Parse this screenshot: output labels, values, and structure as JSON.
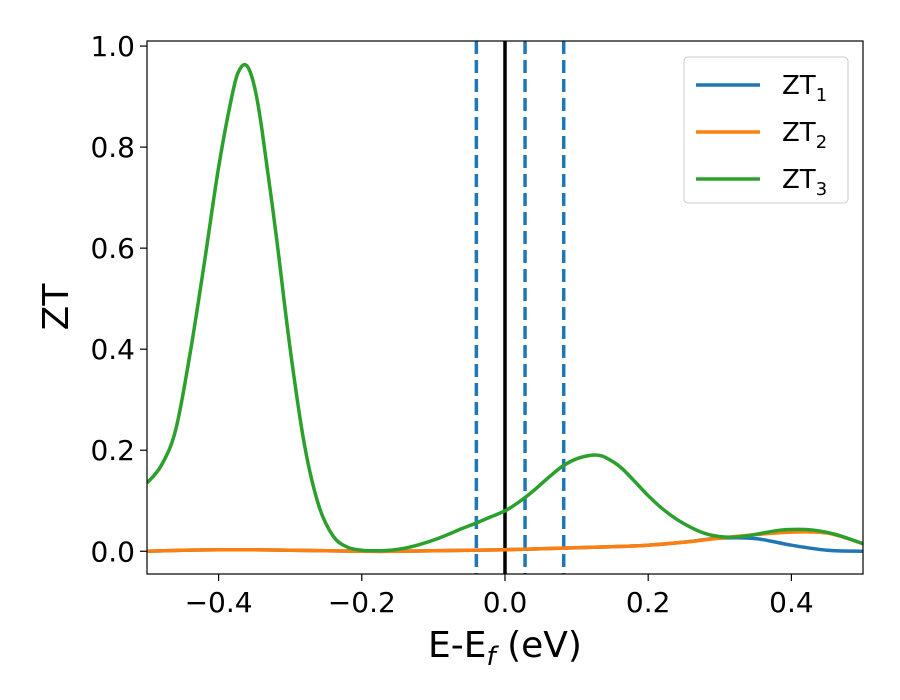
{
  "chart_data": {
    "type": "line",
    "xlabel_main": "E-E",
    "xlabel_sub": "f",
    "xlabel_unit": " (eV)",
    "ylabel": "ZT",
    "xlim": [
      -0.5,
      0.5
    ],
    "ylim": [
      -0.045,
      1.01
    ],
    "grid": false,
    "legend_position": "top-right",
    "x_ticks": [
      {
        "value": -0.4,
        "label": "−0.4"
      },
      {
        "value": -0.2,
        "label": "−0.2"
      },
      {
        "value": 0.0,
        "label": "0.0"
      },
      {
        "value": 0.2,
        "label": "0.2"
      },
      {
        "value": 0.4,
        "label": "0.4"
      }
    ],
    "y_ticks": [
      {
        "value": 0.0,
        "label": "0.0"
      },
      {
        "value": 0.2,
        "label": "0.2"
      },
      {
        "value": 0.4,
        "label": "0.4"
      },
      {
        "value": 0.6,
        "label": "0.6"
      },
      {
        "value": 0.8,
        "label": "0.8"
      },
      {
        "value": 1.0,
        "label": "1.0"
      }
    ],
    "vertical_lines": [
      {
        "x": -0.04,
        "style": "dashed",
        "color": "#1f77b4"
      },
      {
        "x": 0.0,
        "style": "solid",
        "color": "#000000"
      },
      {
        "x": 0.028,
        "style": "dashed",
        "color": "#1f77b4"
      },
      {
        "x": 0.082,
        "style": "dashed",
        "color": "#1f77b4"
      }
    ],
    "series": [
      {
        "name_main": "ZT",
        "name_sub": "1",
        "color": "#1f77b4",
        "x": [
          -0.5,
          -0.45,
          -0.4,
          -0.35,
          -0.3,
          -0.25,
          -0.2,
          -0.15,
          -0.1,
          -0.05,
          0.0,
          0.05,
          0.1,
          0.15,
          0.2,
          0.25,
          0.3,
          0.35,
          0.4,
          0.45,
          0.5
        ],
        "y": [
          0.0,
          0.002,
          0.003,
          0.003,
          0.002,
          0.001,
          0.0,
          0.0,
          0.001,
          0.002,
          0.003,
          0.005,
          0.007,
          0.009,
          0.012,
          0.018,
          0.026,
          0.025,
          0.012,
          0.002,
          0.0
        ]
      },
      {
        "name_main": "ZT",
        "name_sub": "2",
        "color": "#ff7f0e",
        "x": [
          -0.5,
          -0.45,
          -0.4,
          -0.35,
          -0.3,
          -0.25,
          -0.2,
          -0.15,
          -0.1,
          -0.05,
          0.0,
          0.05,
          0.1,
          0.15,
          0.2,
          0.25,
          0.3,
          0.35,
          0.4,
          0.45,
          0.5
        ],
        "y": [
          0.0,
          0.002,
          0.003,
          0.003,
          0.002,
          0.001,
          0.0,
          0.0,
          0.001,
          0.002,
          0.003,
          0.005,
          0.007,
          0.009,
          0.012,
          0.018,
          0.026,
          0.033,
          0.038,
          0.036,
          0.015
        ]
      },
      {
        "name_main": "ZT",
        "name_sub": "3",
        "color": "#2ca02c",
        "x": [
          -0.5,
          -0.48,
          -0.46,
          -0.44,
          -0.42,
          -0.4,
          -0.38,
          -0.37,
          -0.36,
          -0.35,
          -0.34,
          -0.32,
          -0.3,
          -0.28,
          -0.26,
          -0.24,
          -0.22,
          -0.2,
          -0.18,
          -0.16,
          -0.14,
          -0.12,
          -0.1,
          -0.08,
          -0.06,
          -0.04,
          -0.02,
          0.0,
          0.02,
          0.04,
          0.06,
          0.08,
          0.1,
          0.12,
          0.13,
          0.14,
          0.16,
          0.18,
          0.2,
          0.22,
          0.24,
          0.26,
          0.28,
          0.3,
          0.32,
          0.34,
          0.36,
          0.38,
          0.4,
          0.42,
          0.44,
          0.46,
          0.48,
          0.5
        ],
        "y": [
          0.135,
          0.17,
          0.24,
          0.39,
          0.57,
          0.76,
          0.91,
          0.955,
          0.96,
          0.92,
          0.84,
          0.63,
          0.4,
          0.21,
          0.09,
          0.03,
          0.008,
          0.002,
          0.001,
          0.002,
          0.006,
          0.013,
          0.022,
          0.033,
          0.045,
          0.056,
          0.068,
          0.08,
          0.098,
          0.12,
          0.145,
          0.168,
          0.183,
          0.19,
          0.19,
          0.186,
          0.168,
          0.14,
          0.11,
          0.084,
          0.063,
          0.047,
          0.035,
          0.029,
          0.028,
          0.031,
          0.036,
          0.041,
          0.043,
          0.043,
          0.04,
          0.034,
          0.025,
          0.015
        ]
      }
    ]
  }
}
